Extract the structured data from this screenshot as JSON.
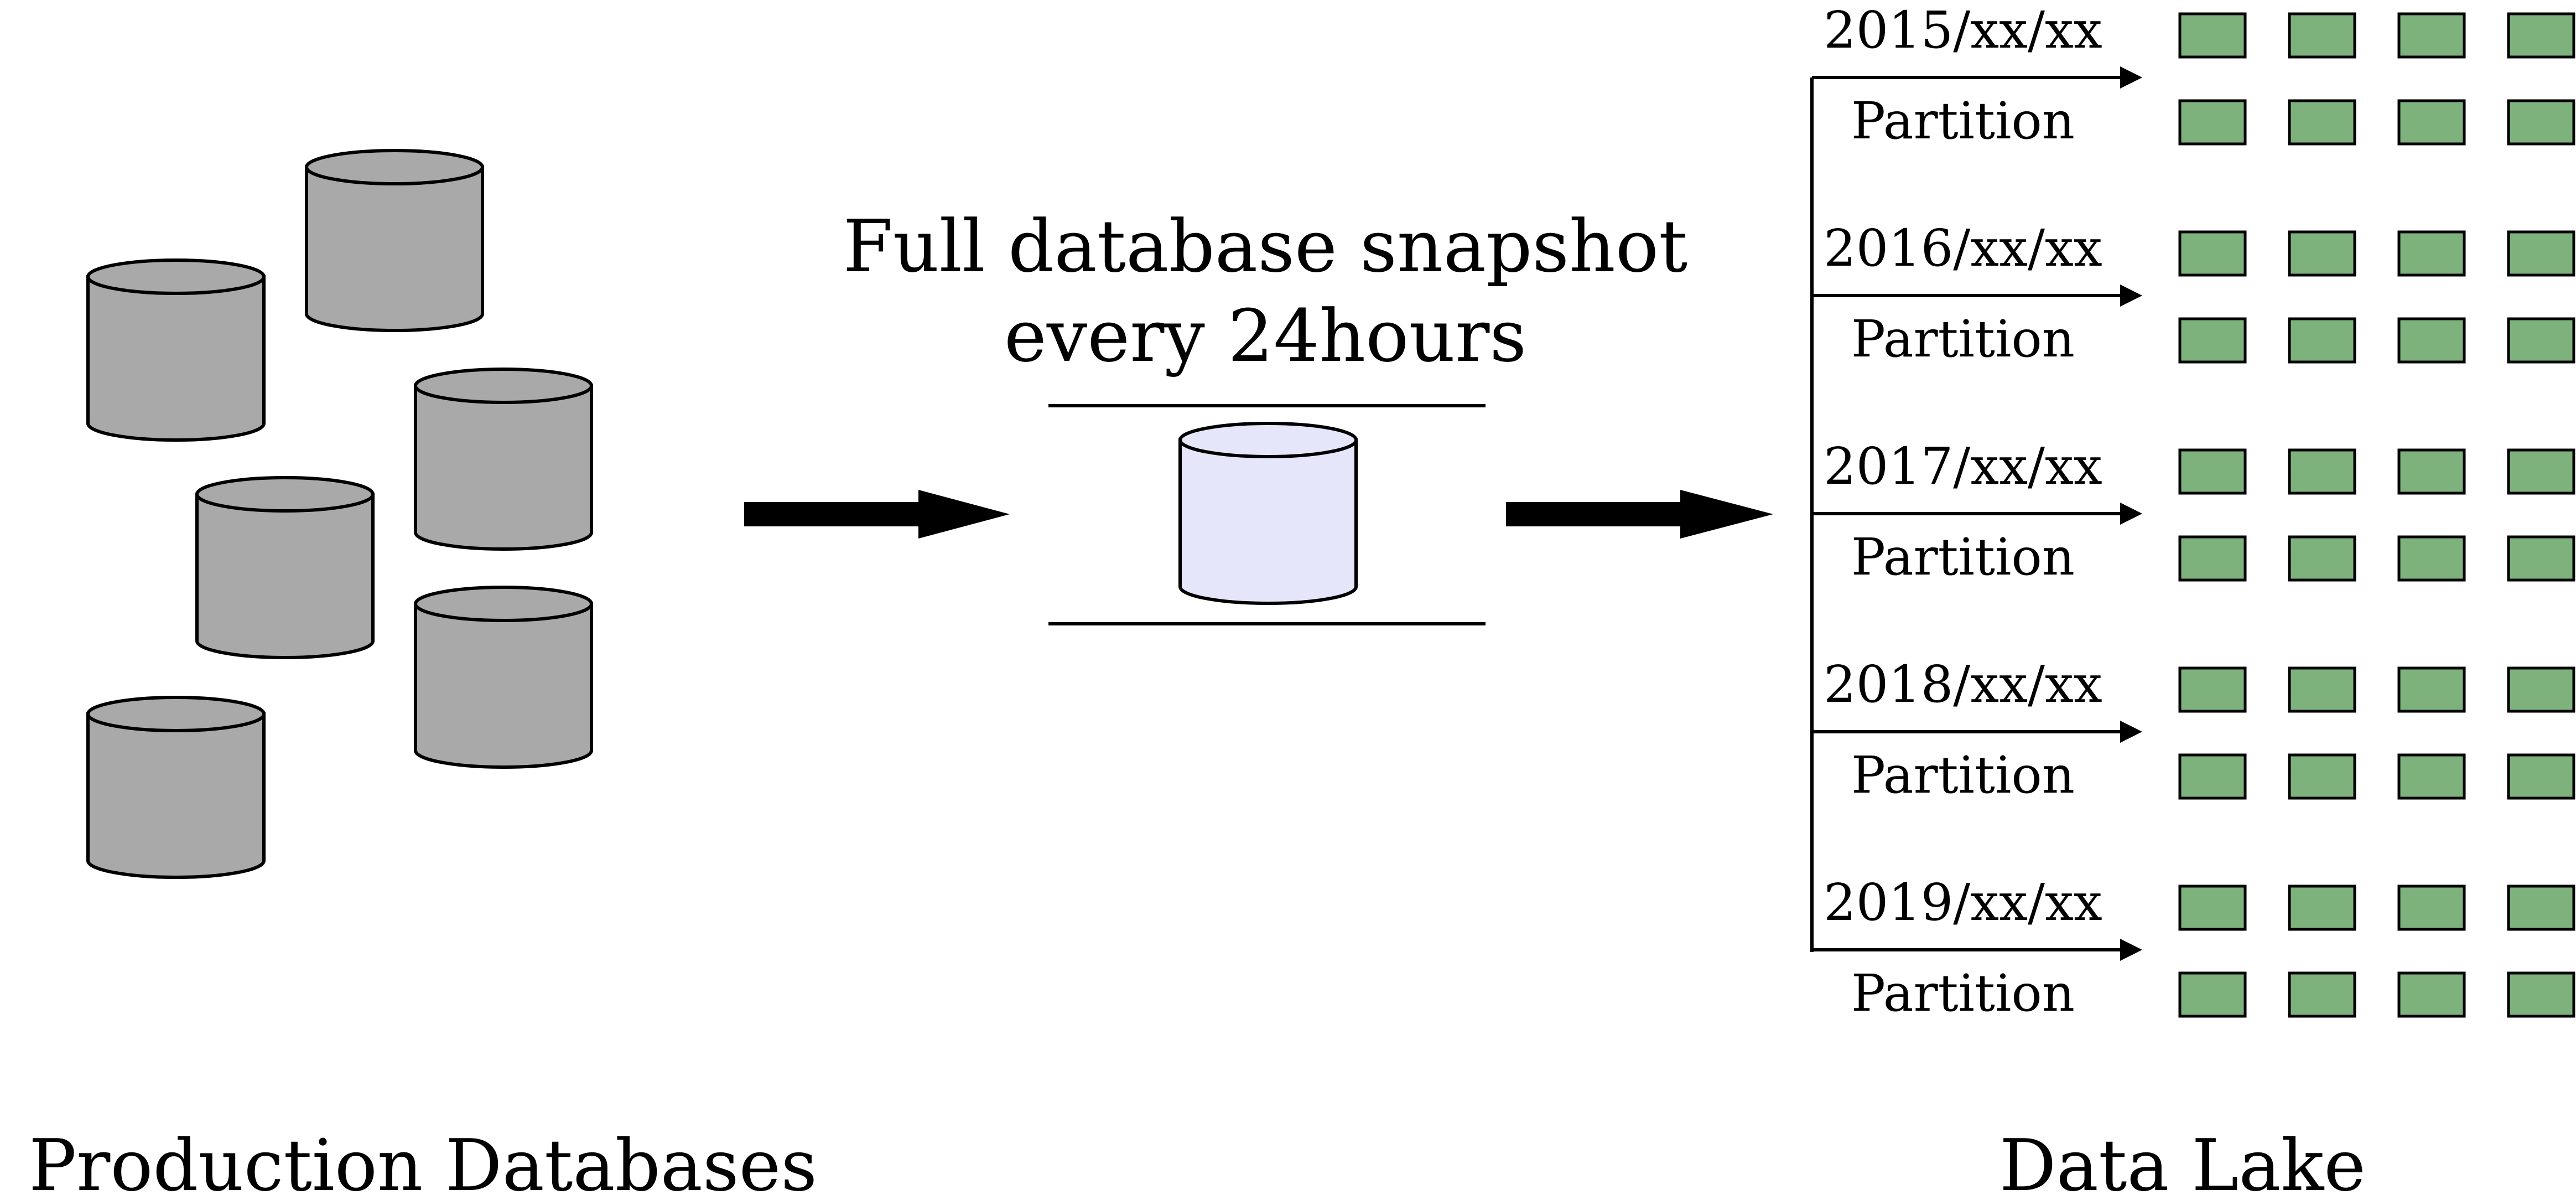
{
  "diagram": {
    "source_label": "Production Databases",
    "snapshot_label_line1": "Full database snapshot",
    "snapshot_label_line2": "every 24hours",
    "target_label": "Data Lake",
    "partitions": [
      {
        "date": "2015/xx/xx",
        "label": "Partition"
      },
      {
        "date": "2016/xx/xx",
        "label": "Partition"
      },
      {
        "date": "2017/xx/xx",
        "label": "Partition"
      },
      {
        "date": "2018/xx/xx",
        "label": "Partition"
      },
      {
        "date": "2019/xx/xx",
        "label": "Partition"
      }
    ]
  },
  "colors": {
    "production_db_fill": "#A9A9A9",
    "snapshot_db_fill": "#E6E6FA",
    "partition_block_fill": "#7DB27D",
    "stroke": "#000000"
  }
}
